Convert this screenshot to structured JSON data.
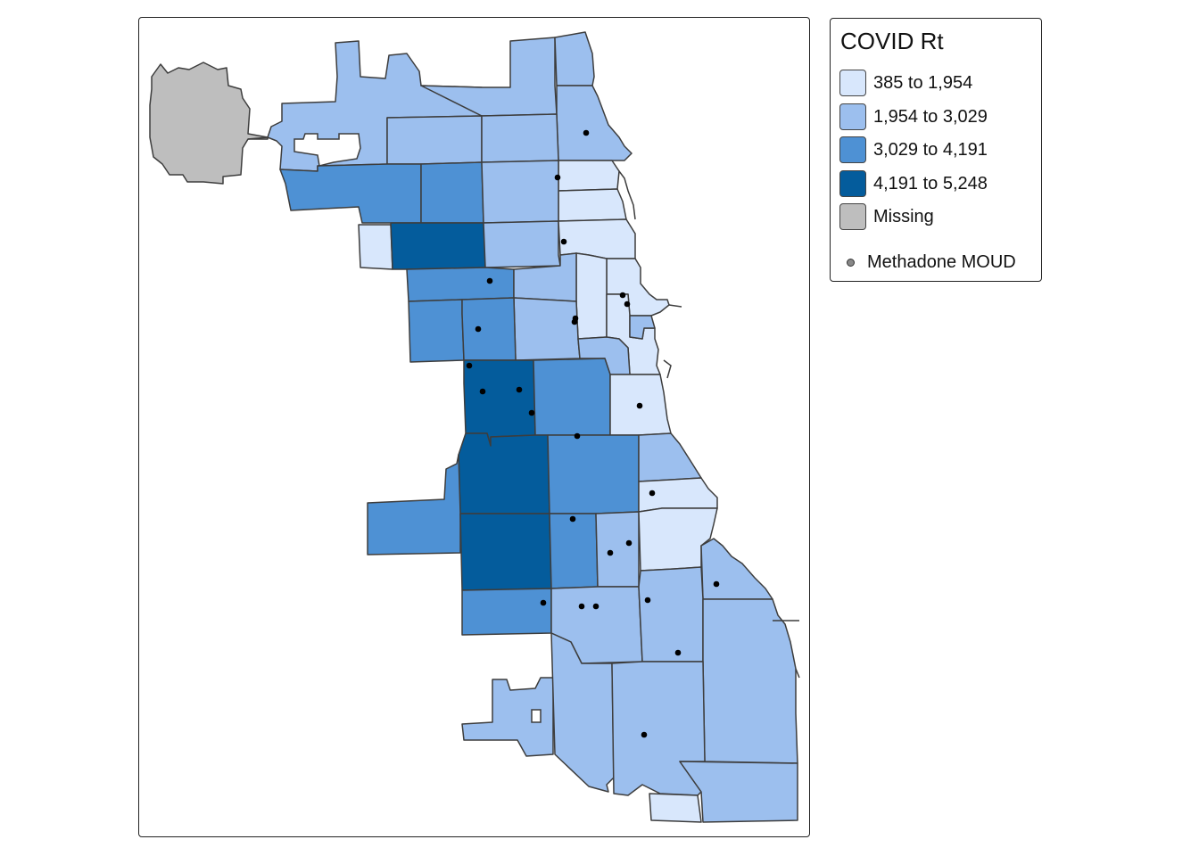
{
  "legend": {
    "title": "COVID Rt",
    "classes": [
      {
        "label": "385 to 1,954",
        "color": "#d8e7fc"
      },
      {
        "label": "1,954 to 3,029",
        "color": "#9cbfee"
      },
      {
        "label": "3,029 to 4,191",
        "color": "#4e91d4"
      },
      {
        "label": "4,191 to 5,248",
        "color": "#045c9c"
      },
      {
        "label": "Missing",
        "color": "#bebebe"
      }
    ],
    "point_layer": {
      "label": "Methadone MOUD",
      "color": "#000000"
    }
  },
  "border_color": "#3d3d3d",
  "regions": [
    {
      "id": "ohare",
      "cls": 4
    },
    {
      "id": "far-north-1",
      "cls": 1
    },
    {
      "id": "far-north-2",
      "cls": 1
    },
    {
      "id": "far-north-3",
      "cls": 1
    },
    {
      "id": "rogers-park",
      "cls": 1
    },
    {
      "id": "north-west-1",
      "cls": 1
    },
    {
      "id": "north-west-2",
      "cls": 1
    },
    {
      "id": "north-west-3",
      "cls": 1
    },
    {
      "id": "north-lake-1",
      "cls": 0
    },
    {
      "id": "north-lake-2",
      "cls": 0
    },
    {
      "id": "north-lake-3",
      "cls": 0
    },
    {
      "id": "north-lake-4",
      "cls": 0
    },
    {
      "id": "north-lake-5",
      "cls": 0
    },
    {
      "id": "north-lake-6",
      "cls": 0
    },
    {
      "id": "west-1",
      "cls": 2
    },
    {
      "id": "west-2",
      "cls": 2
    },
    {
      "id": "west-3",
      "cls": 1
    },
    {
      "id": "west-small",
      "cls": 0
    },
    {
      "id": "belmont-cragin",
      "cls": 3
    },
    {
      "id": "north-center",
      "cls": 1
    },
    {
      "id": "logan-1",
      "cls": 2
    },
    {
      "id": "logan-2",
      "cls": 1
    },
    {
      "id": "logan-3",
      "cls": 1
    },
    {
      "id": "near-north",
      "cls": 0
    },
    {
      "id": "austin",
      "cls": 2
    },
    {
      "id": "humboldt",
      "cls": 2
    },
    {
      "id": "west-town",
      "cls": 1
    },
    {
      "id": "loop",
      "cls": 1
    },
    {
      "id": "garfield",
      "cls": 3
    },
    {
      "id": "lower-west",
      "cls": 2
    },
    {
      "id": "bridgeport",
      "cls": 0
    },
    {
      "id": "lawndale",
      "cls": 3
    },
    {
      "id": "garfield-ridge",
      "cls": 2
    },
    {
      "id": "new-city",
      "cls": 2
    },
    {
      "id": "bronzeville",
      "cls": 1
    },
    {
      "id": "kenwood",
      "cls": 0
    },
    {
      "id": "gage-park",
      "cls": 3
    },
    {
      "id": "englewood-1",
      "cls": 2
    },
    {
      "id": "englewood-2",
      "cls": 1
    },
    {
      "id": "woodlawn",
      "cls": 0
    },
    {
      "id": "south-shore",
      "cls": 1
    },
    {
      "id": "ashburn",
      "cls": 2
    },
    {
      "id": "auburn",
      "cls": 1
    },
    {
      "id": "chatham",
      "cls": 1
    },
    {
      "id": "south-chicago",
      "cls": 1
    },
    {
      "id": "mount-greenwood",
      "cls": 1
    },
    {
      "id": "roseland",
      "cls": 1
    },
    {
      "id": "pullman",
      "cls": 1
    },
    {
      "id": "riverdale",
      "cls": 1
    },
    {
      "id": "hegewisch",
      "cls": 0
    }
  ],
  "points": [
    [
      657,
      149
    ],
    [
      625,
      199
    ],
    [
      632,
      271
    ],
    [
      549,
      315
    ],
    [
      698,
      331
    ],
    [
      703,
      341
    ],
    [
      645,
      357
    ],
    [
      644,
      361
    ],
    [
      536,
      369
    ],
    [
      526,
      410
    ],
    [
      541,
      439
    ],
    [
      582,
      437
    ],
    [
      596,
      463
    ],
    [
      717,
      455
    ],
    [
      647,
      489
    ],
    [
      731,
      553
    ],
    [
      642,
      582
    ],
    [
      705,
      609
    ],
    [
      684,
      620
    ],
    [
      609,
      676
    ],
    [
      652,
      680
    ],
    [
      668,
      680
    ],
    [
      726,
      673
    ],
    [
      803,
      655
    ],
    [
      760,
      732
    ],
    [
      722,
      824
    ]
  ]
}
